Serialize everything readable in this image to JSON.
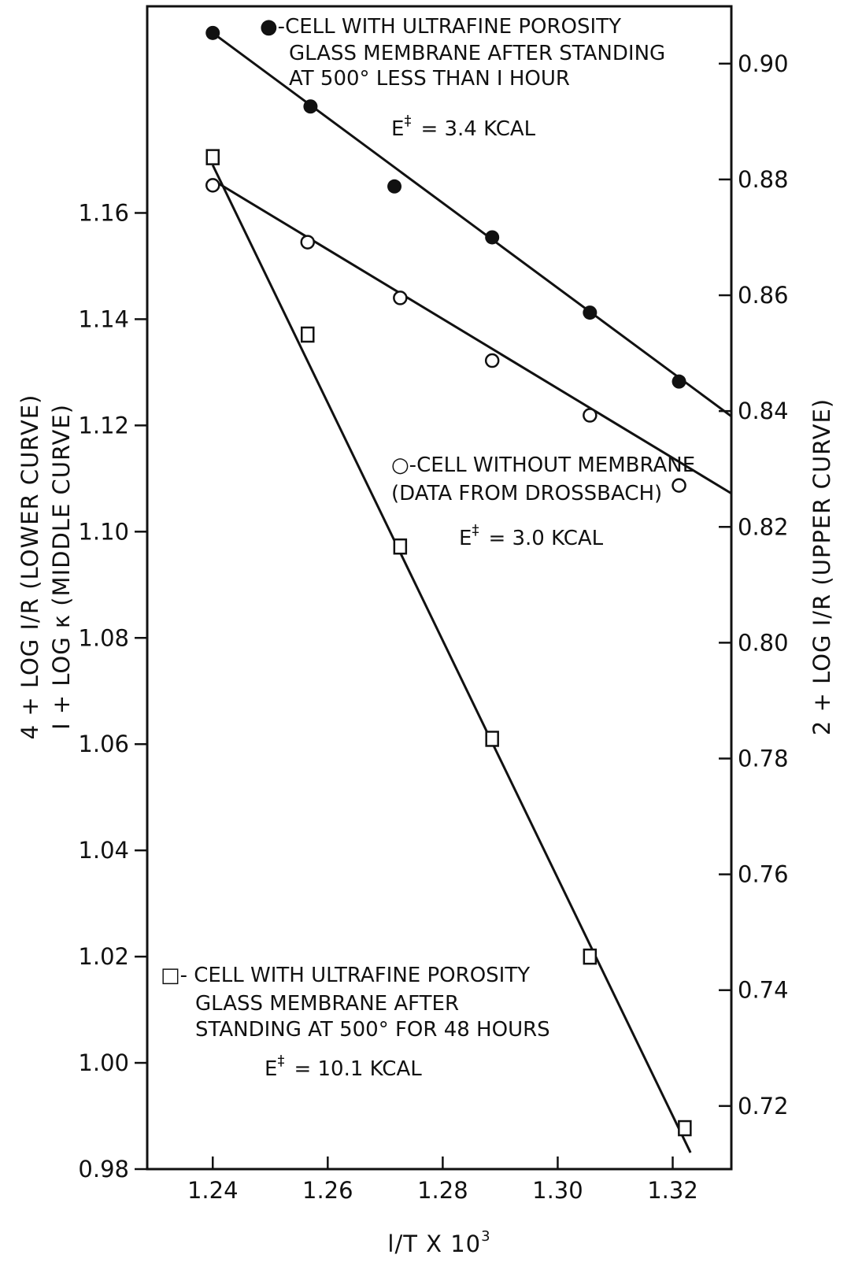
{
  "chart_data": {
    "type": "scatter",
    "x_axis": {
      "label": "l/T  X 10",
      "label_exponent": "3",
      "range": [
        1.2286,
        1.3302
      ],
      "ticks": [
        1.24,
        1.26,
        1.28,
        1.3,
        1.32
      ],
      "tick_labels": [
        "1.24",
        "1.26",
        "1.28",
        "1.30",
        "1.32"
      ]
    },
    "y_left_axis": {
      "label_line1": "4 + LOG I/R (LOWER CURVE)",
      "label_line2": "I + LOG κ (MIDDLE CURVE)",
      "range": [
        0.98,
        1.1989
      ],
      "ticks": [
        0.98,
        1.0,
        1.02,
        1.04,
        1.06,
        1.08,
        1.1,
        1.12,
        1.14,
        1.16
      ],
      "tick_labels": [
        "0.98",
        "1.00",
        "1.02",
        "1.04",
        "1.06",
        "1.08",
        "1.10",
        "1.12",
        "1.14",
        "1.16"
      ]
    },
    "y_right_axis": {
      "label": "2 + LOG I/R (UPPER CURVE)",
      "range": [
        0.7091,
        0.9099
      ],
      "ticks": [
        0.72,
        0.74,
        0.76,
        0.78,
        0.8,
        0.82,
        0.84,
        0.86,
        0.88,
        0.9
      ],
      "tick_labels": [
        "0.72",
        "0.74",
        "0.76",
        "0.78",
        "0.80",
        "0.82",
        "0.84",
        "0.86",
        "0.88",
        "0.90"
      ]
    },
    "series": [
      {
        "key": "upper",
        "axis": "right",
        "marker": "filled-circle",
        "x": [
          1.24,
          1.257,
          1.2716,
          1.2886,
          1.3056,
          1.3211
        ],
        "y": [
          0.9053,
          0.8926,
          0.8788,
          0.87,
          0.857,
          0.8451
        ],
        "fit": {
          "x": [
            1.24,
            1.3302
          ],
          "y": [
            0.9053,
            0.8391
          ]
        }
      },
      {
        "key": "middle",
        "axis": "left",
        "marker": "open-circle",
        "x": [
          1.24,
          1.2565,
          1.2726,
          1.2886,
          1.3056,
          1.3211
        ],
        "y": [
          1.1652,
          1.1545,
          1.144,
          1.1322,
          1.1219,
          1.1087
        ],
        "fit": {
          "x": [
            1.24,
            1.3302
          ],
          "y": [
            1.1662,
            1.1072
          ]
        }
      },
      {
        "key": "lower",
        "axis": "left",
        "marker": "open-square",
        "x": [
          1.24,
          1.2565,
          1.2726,
          1.2886,
          1.3056,
          1.3221
        ],
        "y": [
          1.1705,
          1.1371,
          1.0972,
          1.061,
          1.02,
          0.9877
        ],
        "fit": {
          "x": [
            1.24,
            1.3231
          ],
          "y": [
            1.169,
            0.9831
          ]
        }
      }
    ],
    "annotations": [
      {
        "lines": [
          "●-CELL WITH ULTRAFINE POROSITY",
          "GLASS MEMBRANE AFTER STANDING",
          "AT 500° LESS THAN I HOUR"
        ],
        "energy": "3.4 KCAL"
      },
      {
        "lines": [
          "○-CELL WITHOUT MEMBRANE",
          "(DATA FROM DROSSBACH)"
        ],
        "energy": "3.0 KCAL"
      },
      {
        "lines": [
          "□- CELL WITH ULTRAFINE POROSITY",
          "GLASS MEMBRANE AFTER",
          "STANDING AT 500° FOR 48 HOURS"
        ],
        "energy": "10.1 KCAL"
      }
    ],
    "energy_symbol": "E",
    "energy_superscript": "‡",
    "grid": false,
    "legend": "inline"
  }
}
